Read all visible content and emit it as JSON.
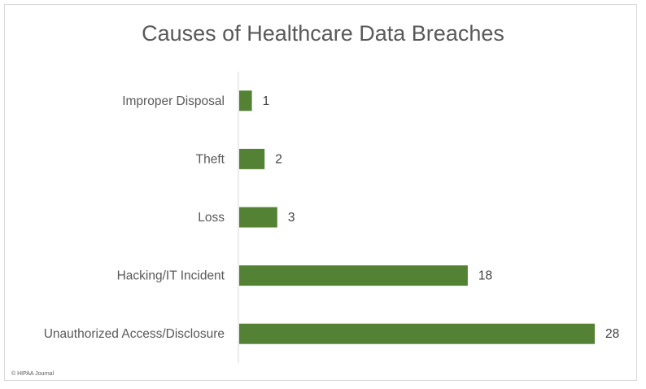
{
  "chart_data": {
    "type": "bar",
    "orientation": "horizontal",
    "title": "Causes of Healthcare Data Breaches",
    "categories": [
      "Improper Disposal",
      "Theft",
      "Loss",
      "Hacking/IT Incident",
      "Unauthorized Access/Disclosure"
    ],
    "values": [
      1,
      2,
      3,
      18,
      28
    ],
    "data_labels": [
      "1",
      "2",
      "3",
      "18",
      "28"
    ],
    "xlim": [
      0,
      28
    ],
    "grid": false,
    "legend": "none",
    "bar_color": "#548235",
    "axis_color": "#d9d9d9"
  },
  "footer": {
    "copyright": "© HIPAA Journal"
  }
}
